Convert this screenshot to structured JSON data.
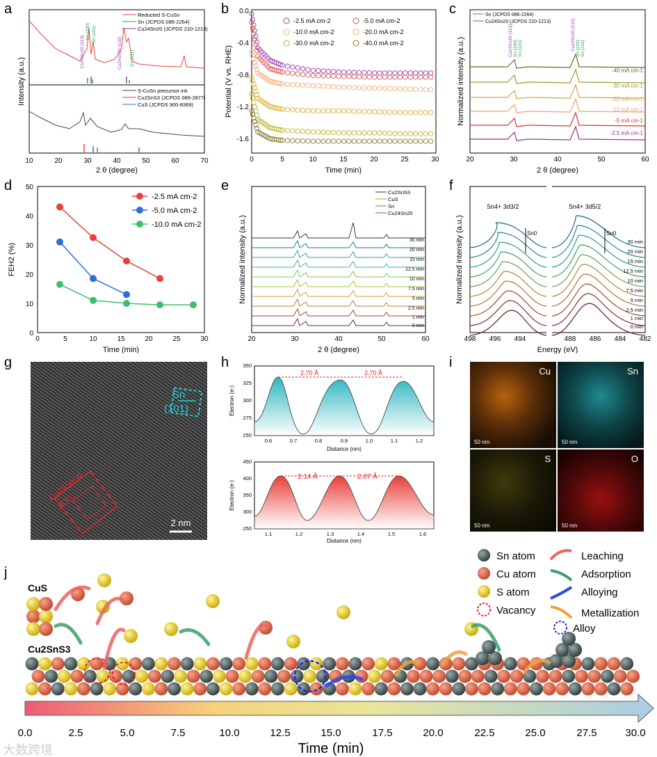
{
  "panels": {
    "a": {
      "label": "a",
      "ylabel": "Intensity (a.u.)",
      "xlabel": "2 θ (degree)",
      "legend_top": [
        "Reducted S-CuSn",
        "Sn (JCPDS 086-2264)",
        "Cu24Sn20 (JCPDS 210-1213)"
      ],
      "legend_bottom": [
        "S-CuSn precursor ink",
        "Cu2SnS3 (JCPDS 089-2877)",
        "CuS (JCPDS 900-8369)"
      ],
      "peak_labels": [
        "Cu24Sn20 (113)",
        "Sn (200)",
        "Sn (101)",
        "Cu24Sn20 (132)",
        "Sn (211)"
      ],
      "xticks": [
        "10",
        "20",
        "30",
        "40",
        "50",
        "60",
        "70"
      ]
    },
    "b": {
      "label": "b",
      "ylabel": "Potential (V vs. RHE)",
      "xlabel": "Time (min)",
      "legend": [
        "-2.5 mA cm-2",
        "-5.0 mA cm-2",
        "-10.0 mA cm-2",
        "-20.0 mA cm-2",
        "-30.0 mA cm-2",
        "-40.0 mA cm-2"
      ],
      "xticks": [
        "0",
        "5",
        "10",
        "15",
        "20",
        "25",
        "30"
      ],
      "yticks": [
        "0.0",
        "-0.4",
        "-0.8",
        "-1.2",
        "-1.6"
      ]
    },
    "c": {
      "label": "c",
      "ylabel": "Normalized intensity (a.u.)",
      "xlabel": "2 θ (degree)",
      "legend": [
        "Sn (JCPDS 086-2264)",
        "Cu24Sn20 (JCPDS 210-1213)"
      ],
      "curves": [
        "-40 mA cm-1",
        "-30 mA cm-1",
        "-20 mA cm-1",
        "-10 mA cm-1",
        "-5 mA cm-1",
        "-2.5 mA cm-1"
      ],
      "peak_labels": [
        "Cu24Sn20 (113)",
        "Sn (200)",
        "Sn (101)",
        "Cu24Sn20 (132)",
        "Sn (220)",
        "Sn (211)"
      ],
      "xticks": [
        "20",
        "30",
        "40",
        "50",
        "60"
      ]
    },
    "d": {
      "label": "d",
      "ylabel": "FEH2 (%)",
      "xlabel": "Time (min)",
      "xticks": [
        "0",
        "5",
        "10",
        "15",
        "20",
        "25",
        "30"
      ],
      "yticks": [
        "0",
        "10",
        "20",
        "30",
        "40",
        "50"
      ]
    },
    "e": {
      "label": "e",
      "ylabel": "Normalized intensity (a.u.)",
      "xlabel": "2 θ (degree)",
      "legend": [
        "Cu2SnS3",
        "CuS",
        "Sn",
        "Cu24Sn20"
      ],
      "times": [
        "30 min",
        "20 min",
        "15 min",
        "12.5 min",
        "10 min",
        "7.5 min",
        "5 min",
        "2.5 min",
        "1 min",
        "0 min"
      ],
      "xticks": [
        "20",
        "30",
        "40",
        "50",
        "60"
      ]
    },
    "f": {
      "label": "f",
      "ylabel": "Normalized intensity (a.u.)",
      "xlabel": "Energy (eV)",
      "left_title": "Sn4+ 3d3/2",
      "right_title": "Sn4+ 3d5/2",
      "arrow_label": "Sn0",
      "times": [
        "30 min",
        "20 min",
        "15 min",
        "12.5 min",
        "10 min",
        "7.5 min",
        "5 min",
        "2.5 min",
        "1 min",
        "0 min"
      ],
      "xticks": [
        "498",
        "496",
        "494",
        "488",
        "486",
        "484",
        "482"
      ]
    },
    "g": {
      "label": "g",
      "sn_label": "Sn",
      "sn_plane": "(101)",
      "cusn_label": "Cu24Sn20",
      "cusn_plane": "(132)",
      "scale": "2 nm"
    },
    "h": {
      "label": "h",
      "ylabel": "Electron (e-)",
      "xlabel": "Distance (nm)",
      "top_spacings": [
        "2.70 Å",
        "2.70 Å"
      ],
      "bottom_spacings": [
        "2.14 Å",
        "2.07 Å"
      ],
      "top_xticks": [
        "0.6",
        "0.7",
        "0.8",
        "0.9",
        "1.0",
        "1.1",
        "1.2"
      ],
      "top_yticks": [
        "250",
        "275",
        "300",
        "325",
        "350"
      ],
      "bottom_xticks": [
        "1.1",
        "1.2",
        "1.3",
        "1.4",
        "1.5",
        "1.6"
      ],
      "bottom_yticks": [
        "250",
        "300",
        "350",
        "400",
        "450"
      ]
    },
    "i": {
      "label": "i",
      "maps": [
        "Cu",
        "Sn",
        "S",
        "O"
      ],
      "scale": "50 nm"
    },
    "j": {
      "label": "j",
      "cus": "CuS",
      "cu2sns3": "Cu2SnS3",
      "legend_atoms": [
        "Sn atom",
        "Cu atom",
        "S atom",
        "Vacancy",
        "Alloy"
      ],
      "legend_processes": [
        "Leaching",
        "Adsorption",
        "Alloying",
        "Metallization"
      ],
      "axis_title": "Time (min)",
      "ticks": [
        "0.0",
        "2.5",
        "5.0",
        "7.5",
        "10.0",
        "12.5",
        "15.0",
        "17.5",
        "20.0",
        "22.5",
        "25.0",
        "27.5",
        "30.0"
      ]
    }
  },
  "chart_data": [
    {
      "type": "scatter",
      "panel": "d",
      "title": "",
      "xlabel": "Time (min)",
      "ylabel": "FEH2 (%)",
      "xlim": [
        0,
        30
      ],
      "ylim": [
        0,
        50
      ],
      "series": [
        {
          "name": "-2.5 mA cm-2",
          "color": "#e8413c",
          "x": [
            4,
            10,
            16,
            22
          ],
          "y": [
            43,
            32.5,
            24.5,
            18.5
          ]
        },
        {
          "name": "-5.0 mA cm-2",
          "color": "#2a6fd6",
          "x": [
            4,
            10,
            16
          ],
          "y": [
            31,
            18.5,
            13
          ]
        },
        {
          "name": "-10.0 mA cm-2",
          "color": "#3ebd6e",
          "x": [
            4,
            10,
            16,
            22,
            28
          ],
          "y": [
            16.5,
            11,
            10,
            9.5,
            9.5
          ]
        }
      ]
    },
    {
      "type": "line",
      "panel": "b",
      "xlabel": "Time (min)",
      "ylabel": "Potential (V vs. RHE)",
      "xlim": [
        0,
        30
      ],
      "ylim": [
        -1.7,
        0
      ],
      "series": [
        {
          "name": "-2.5 mA cm-2",
          "color": "#9b3fb3",
          "x": [
            0,
            1,
            3,
            5,
            10,
            15,
            20,
            25,
            30
          ],
          "y": [
            -0.05,
            -0.45,
            -0.6,
            -0.66,
            -0.72,
            -0.74,
            -0.75,
            -0.75,
            -0.75
          ]
        },
        {
          "name": "-5.0 mA cm-2",
          "color": "#d9534f",
          "x": [
            0,
            1,
            3,
            5,
            10,
            15,
            20,
            25,
            30
          ],
          "y": [
            -0.15,
            -0.55,
            -0.7,
            -0.74,
            -0.78,
            -0.79,
            -0.8,
            -0.8,
            -0.8
          ]
        },
        {
          "name": "-10.0 mA cm-2",
          "color": "#f0b07a",
          "x": [
            0,
            1,
            3,
            5,
            10,
            15,
            20,
            25,
            30
          ],
          "y": [
            -0.5,
            -0.75,
            -0.85,
            -0.88,
            -0.9,
            -0.92,
            -0.93,
            -0.94,
            -0.95
          ]
        },
        {
          "name": "-20.0 mA cm-2",
          "color": "#e0b030",
          "x": [
            0,
            1,
            3,
            5,
            10,
            15,
            20,
            25,
            30
          ],
          "y": [
            -0.8,
            -1.05,
            -1.15,
            -1.18,
            -1.2,
            -1.2,
            -1.21,
            -1.22,
            -1.22
          ]
        },
        {
          "name": "-30.0 mA cm-2",
          "color": "#b8b830",
          "x": [
            0,
            1,
            3,
            5,
            10,
            15,
            20,
            25,
            30
          ],
          "y": [
            -1.0,
            -1.3,
            -1.4,
            -1.43,
            -1.45,
            -1.46,
            -1.46,
            -1.47,
            -1.47
          ]
        },
        {
          "name": "-40.0 mA cm-2",
          "color": "#8a7a30",
          "x": [
            0,
            1,
            3,
            5,
            10,
            15,
            20,
            25,
            30
          ],
          "y": [
            -1.2,
            -1.45,
            -1.53,
            -1.55,
            -1.56,
            -1.56,
            -1.56,
            -1.56,
            -1.56
          ]
        }
      ]
    }
  ],
  "watermark": "大数跨境"
}
